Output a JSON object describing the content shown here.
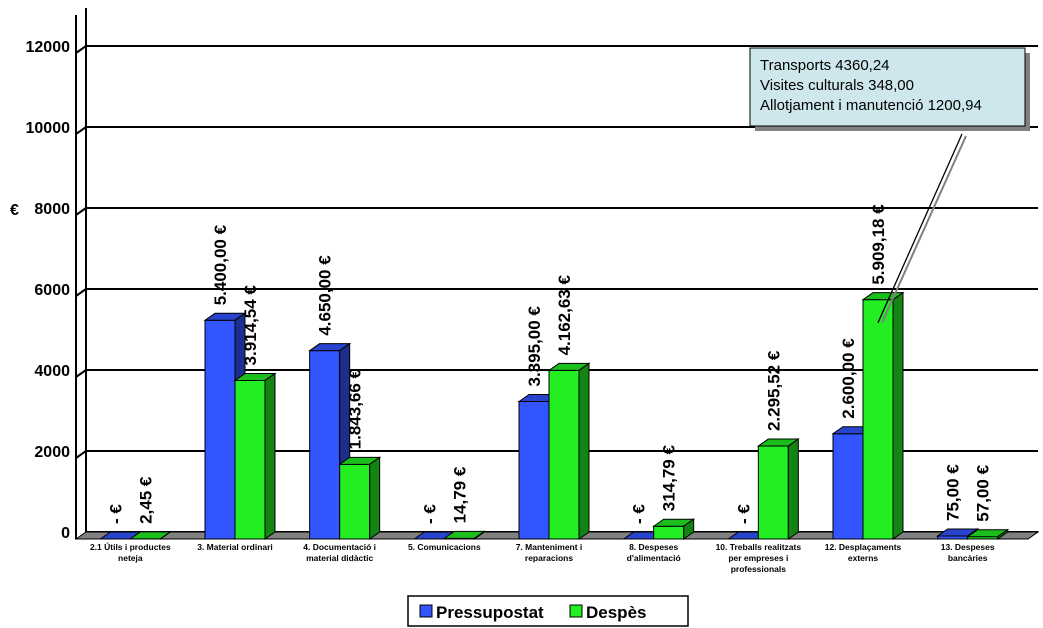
{
  "chart_data": {
    "type": "bar",
    "ylabel": "€",
    "ylim": [
      0,
      12000
    ],
    "yticks": [
      "0",
      "2000",
      "4000",
      "6000",
      "8000",
      "10000",
      "12000"
    ],
    "categories": [
      [
        "2.1 Útils i productes",
        "neteja"
      ],
      [
        "3. Material ordinari"
      ],
      [
        "4. Documentació i",
        "material didàctic"
      ],
      [
        "5. Comunicacions"
      ],
      [
        "7. Manteniment i",
        "reparacions"
      ],
      [
        "8. Despeses",
        "d'alimentació"
      ],
      [
        "10. Treballs realitzats",
        "per empreses i",
        "professionals"
      ],
      [
        "12. Desplaçaments",
        "externs"
      ],
      [
        "13. Despeses",
        "bancàries"
      ]
    ],
    "series": [
      {
        "name": "Pressupostat",
        "color": "#3355ff",
        "values": [
          0,
          5400,
          4650,
          0,
          3395,
          0,
          0,
          2600,
          75
        ],
        "labels": [
          "- €",
          "5.400,00 €",
          "4.650,00 €",
          "- €",
          "3.395,00 €",
          "- €",
          "- €",
          "2.600,00 €",
          "75,00 €"
        ]
      },
      {
        "name": "Despès",
        "color": "#22ee22",
        "values": [
          2.45,
          3914.54,
          1843.66,
          14.79,
          4162.63,
          314.79,
          2295.52,
          5909.18,
          57
        ],
        "labels": [
          "2,45 €",
          "3.914,54 €",
          "1.843,66 €",
          "14,79 €",
          "4.162,63 €",
          "314,79 €",
          "2.295,52 €",
          "5.909,18 €",
          "57,00 €"
        ]
      }
    ],
    "grid": true,
    "legend_position": "bottom",
    "annotation": {
      "lines": [
        "Transports 4360,24",
        "Visites culturals 348,00",
        "Allotjament i manutenció 1200,94"
      ]
    }
  }
}
